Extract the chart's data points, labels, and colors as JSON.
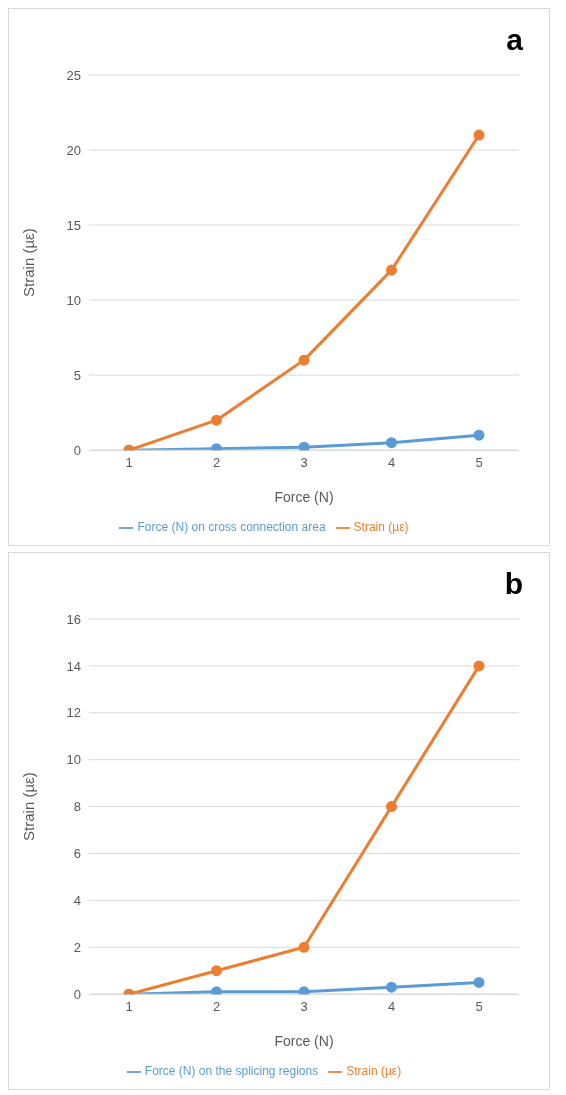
{
  "chart_data": [
    {
      "type": "line",
      "title": "a",
      "xlabel": "Force (N)",
      "ylabel": "Strain (µε)",
      "categories": [
        "1",
        "2",
        "3",
        "4",
        "5"
      ],
      "series": [
        {
          "name": "Force (N) on cross connection area",
          "color": "#5b9bd5",
          "values": [
            0,
            0.1,
            0.2,
            0.5,
            1
          ]
        },
        {
          "name": "Strain (µε)",
          "color": "#ed7d31",
          "values": [
            0,
            2,
            6,
            12,
            21
          ]
        }
      ],
      "ylim": [
        0,
        25
      ],
      "yticks": [
        0,
        5,
        10,
        15,
        20,
        25
      ],
      "grid": "y",
      "legend": "bottom",
      "marker": "circle",
      "line_style": "solid"
    },
    {
      "type": "line",
      "title": "b",
      "xlabel": "Force (N)",
      "ylabel": "Strain (µε)",
      "categories": [
        "1",
        "2",
        "3",
        "4",
        "5"
      ],
      "series": [
        {
          "name": "Force (N) on the splicing regions",
          "color": "#5b9bd5",
          "values": [
            0,
            0.1,
            0.1,
            0.3,
            0.5
          ]
        },
        {
          "name": "Strain (µε)",
          "color": "#ed7d31",
          "values": [
            0,
            1,
            2,
            8,
            14
          ]
        }
      ],
      "ylim": [
        0,
        16
      ],
      "yticks": [
        0,
        2,
        4,
        6,
        8,
        10,
        12,
        14,
        16
      ],
      "grid": "y",
      "legend": "bottom",
      "marker": "circle",
      "line_style": "solid"
    }
  ]
}
